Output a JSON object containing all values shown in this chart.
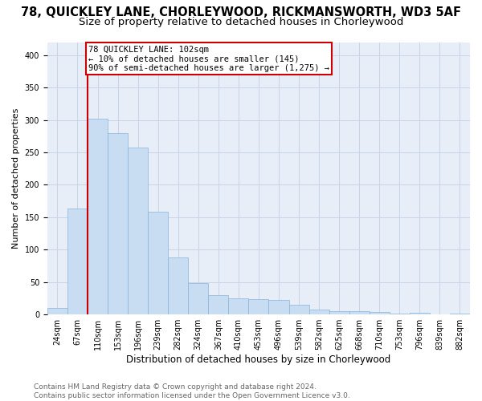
{
  "title": "78, QUICKLEY LANE, CHORLEYWOOD, RICKMANSWORTH, WD3 5AF",
  "subtitle": "Size of property relative to detached houses in Chorleywood",
  "xlabel": "Distribution of detached houses by size in Chorleywood",
  "ylabel": "Number of detached properties",
  "bar_values": [
    10,
    163,
    302,
    280,
    258,
    158,
    88,
    49,
    30,
    25,
    24,
    22,
    15,
    8,
    5,
    5,
    4,
    1,
    3,
    0,
    2
  ],
  "bar_labels": [
    "24sqm",
    "67sqm",
    "110sqm",
    "153sqm",
    "196sqm",
    "239sqm",
    "282sqm",
    "324sqm",
    "367sqm",
    "410sqm",
    "453sqm",
    "496sqm",
    "539sqm",
    "582sqm",
    "625sqm",
    "668sqm",
    "710sqm",
    "753sqm",
    "796sqm",
    "839sqm",
    "882sqm"
  ],
  "bar_color": "#c9ddf2",
  "bar_edge_color": "#89b4d8",
  "vline_color": "#cc0000",
  "annotation_box_text": "78 QUICKLEY LANE: 102sqm\n← 10% of detached houses are smaller (145)\n90% of semi-detached houses are larger (1,275) →",
  "ylim": [
    0,
    420
  ],
  "yticks": [
    0,
    50,
    100,
    150,
    200,
    250,
    300,
    350,
    400
  ],
  "grid_color": "#c8d4e8",
  "background_color": "#e8eef8",
  "footer_text": "Contains HM Land Registry data © Crown copyright and database right 2024.\nContains public sector information licensed under the Open Government Licence v3.0.",
  "title_fontsize": 10.5,
  "subtitle_fontsize": 9.5,
  "xlabel_fontsize": 8.5,
  "ylabel_fontsize": 8,
  "tick_fontsize": 7,
  "footer_fontsize": 6.5,
  "annotation_fontsize": 7.5
}
